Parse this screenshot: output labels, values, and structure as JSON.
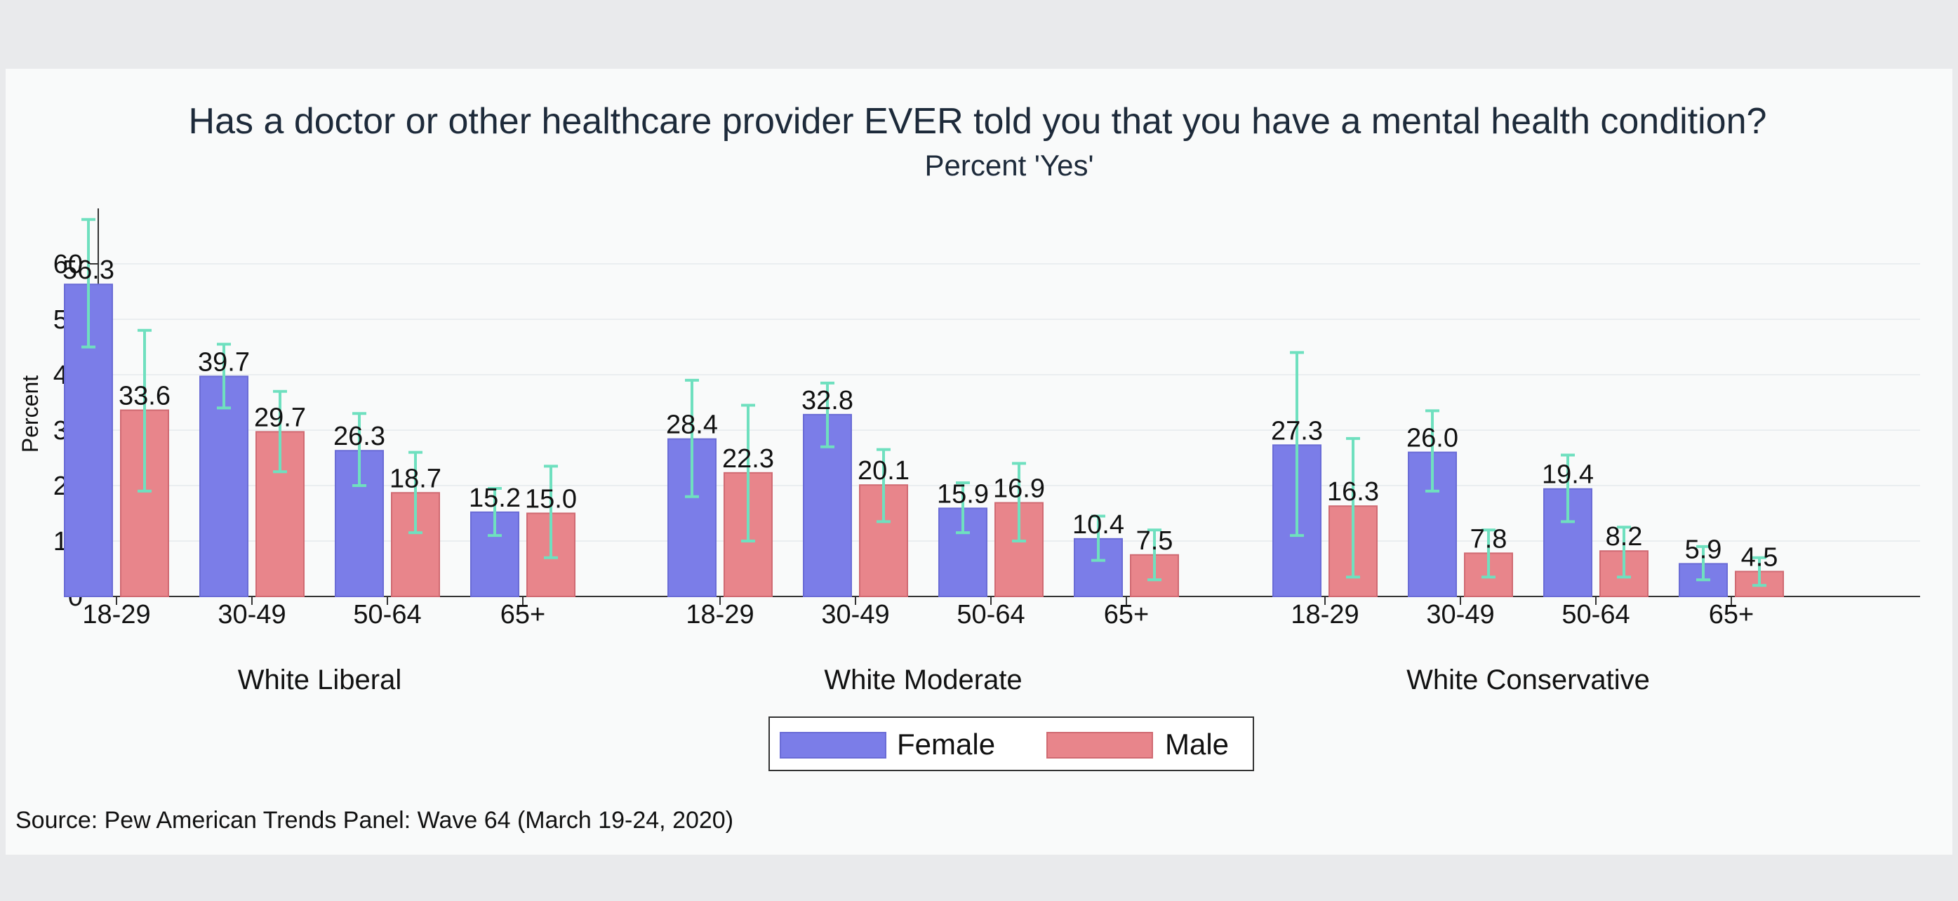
{
  "chart_data": {
    "type": "bar",
    "title": "Has a doctor or other healthcare provider EVER told you that you have a mental health condition?",
    "subtitle": "Percent 'Yes'",
    "ylabel": "Percent",
    "xlabel": "",
    "ylim": [
      0,
      70
    ],
    "yticks": [
      0,
      10,
      20,
      30,
      40,
      50,
      60
    ],
    "grid": true,
    "legend_position": "bottom",
    "source": "Source: Pew American Trends Panel: Wave 64 (March 19-24, 2020)",
    "groups": [
      "White Liberal",
      "White Moderate",
      "White Conservative"
    ],
    "categories": [
      "18-29",
      "30-49",
      "50-64",
      "65+"
    ],
    "series": [
      {
        "name": "Female",
        "color": "#7b7de8",
        "values": [
          [
            56.3,
            39.7,
            26.3,
            15.2
          ],
          [
            28.4,
            32.8,
            15.9,
            10.4
          ],
          [
            27.3,
            26.0,
            19.4,
            5.9
          ]
        ],
        "labels": [
          [
            "56.3",
            "39.7",
            "26.3",
            "15.2"
          ],
          [
            "28.4",
            "32.8",
            "15.9",
            "10.4"
          ],
          [
            "27.3",
            "26.0",
            "19.4",
            "5.9"
          ]
        ],
        "ci_low": [
          [
            45,
            34,
            20,
            11
          ],
          [
            18,
            27,
            11.5,
            6.5
          ],
          [
            11,
            19,
            13.5,
            3
          ]
        ],
        "ci_high": [
          [
            68,
            45.5,
            33,
            19.5
          ],
          [
            39,
            38.5,
            20.5,
            14.5
          ],
          [
            44,
            33.5,
            25.5,
            9
          ]
        ]
      },
      {
        "name": "Male",
        "color": "#e8858b",
        "values": [
          [
            33.6,
            29.7,
            18.7,
            15.0
          ],
          [
            22.3,
            20.1,
            16.9,
            7.5
          ],
          [
            16.3,
            7.8,
            8.2,
            4.5
          ]
        ],
        "labels": [
          [
            "33.6",
            "29.7",
            "18.7",
            "15.0"
          ],
          [
            "22.3",
            "20.1",
            "16.9",
            "7.5"
          ],
          [
            "16.3",
            "7.8",
            "8.2",
            "4.5"
          ]
        ],
        "ci_low": [
          [
            19,
            22.5,
            11.5,
            7
          ],
          [
            10,
            13.5,
            10,
            3
          ],
          [
            3.5,
            3.5,
            3.5,
            2
          ]
        ],
        "ci_high": [
          [
            48,
            37,
            26,
            23.5
          ],
          [
            34.5,
            26.5,
            24,
            12
          ],
          [
            28.5,
            12,
            12.5,
            7
          ]
        ]
      }
    ],
    "error_bar_color": "#6fe0bf"
  }
}
